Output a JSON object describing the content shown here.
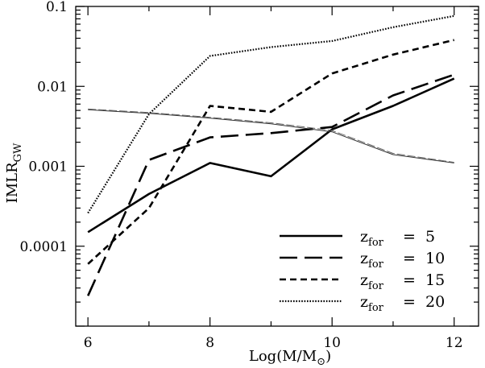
{
  "chart_data": {
    "type": "line",
    "title": "",
    "xlabel": {
      "main": "Log(M/M",
      "sub": "⊙",
      "close": ")"
    },
    "ylabel": {
      "main": "IMLR",
      "sub": "GW"
    },
    "xlim": [
      5.8,
      12.4
    ],
    "ylim": [
      1e-05,
      0.1
    ],
    "yscale": "log",
    "x_ticks": [
      6,
      8,
      10,
      12
    ],
    "x_tick_labels": [
      "6",
      "8",
      "10",
      "12"
    ],
    "y_ticks": [
      0.0001,
      0.001,
      0.01,
      0.1
    ],
    "y_tick_labels": [
      "0.0001",
      "0.001",
      "0.01",
      "0.1"
    ],
    "legend_position": "bottom-right",
    "series": [
      {
        "name": "z_for = 5",
        "legend": {
          "var": "z",
          "sub": "for",
          "eq": "=",
          "val": "5"
        },
        "style": "solid",
        "x": [
          6,
          7,
          8,
          9,
          10,
          11,
          12
        ],
        "y": [
          0.00015,
          0.00045,
          0.0011,
          0.00075,
          0.0029,
          0.0057,
          0.0125
        ]
      },
      {
        "name": "z_for = 10",
        "legend": {
          "var": "z",
          "sub": "for",
          "eq": "=",
          "val": "10"
        },
        "style": "long-dash",
        "x": [
          6,
          7,
          8,
          9,
          10,
          11,
          12
        ],
        "y": [
          2.4e-05,
          0.0012,
          0.0023,
          0.0026,
          0.0031,
          0.0077,
          0.014
        ]
      },
      {
        "name": "z_for = 15",
        "legend": {
          "var": "z",
          "sub": "for",
          "eq": "=",
          "val": "15"
        },
        "style": "short-dash",
        "x": [
          6,
          7,
          8,
          9,
          10,
          11,
          12
        ],
        "y": [
          6e-05,
          0.0003,
          0.0057,
          0.0048,
          0.0145,
          0.025,
          0.038
        ]
      },
      {
        "name": "z_for = 20",
        "legend": {
          "var": "z",
          "sub": "for",
          "eq": "=",
          "val": "20"
        },
        "style": "dotted",
        "x": [
          6,
          7,
          8,
          9,
          10,
          11,
          12
        ],
        "y": [
          0.00026,
          0.0045,
          0.024,
          0.031,
          0.037,
          0.055,
          0.076
        ]
      },
      {
        "name": "",
        "style": "double-thin",
        "x": [
          6,
          7,
          8,
          9,
          10,
          11,
          12
        ],
        "y": [
          0.0051,
          0.0046,
          0.004,
          0.0034,
          0.0027,
          0.0014,
          0.0011
        ]
      },
      {
        "name": "",
        "style": "double-thin-dash",
        "x": [
          6,
          7,
          8,
          9,
          10,
          11,
          12
        ],
        "y": [
          0.0052,
          0.0047,
          0.0041,
          0.0035,
          0.0028,
          0.00145,
          0.00112
        ]
      }
    ]
  }
}
